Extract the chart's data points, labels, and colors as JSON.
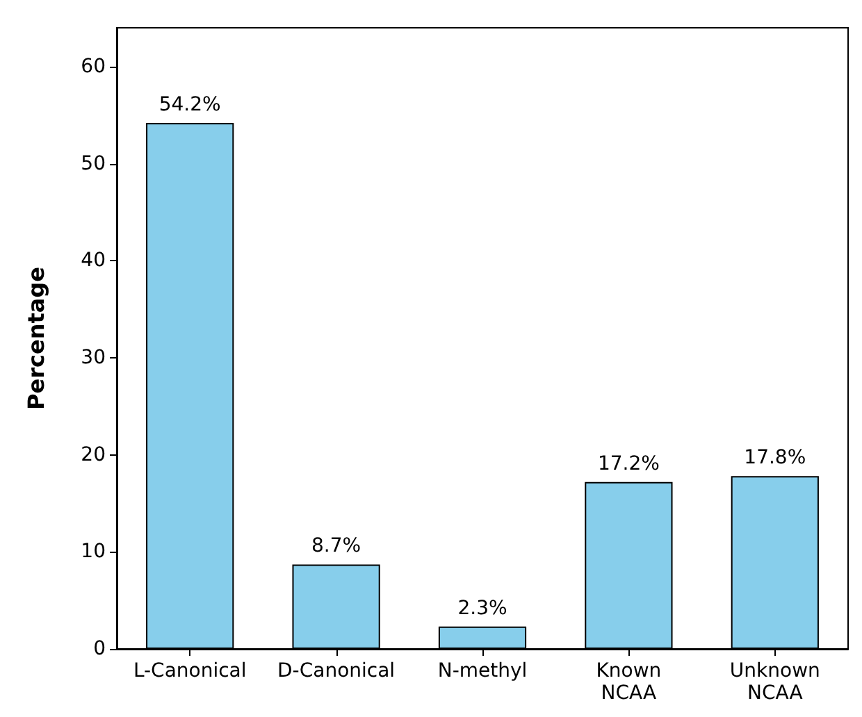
{
  "chart_data": {
    "type": "bar",
    "ylabel": "Percentage",
    "categories": [
      "L-Canonical",
      "D-Canonical",
      "N-methyl",
      "Known\nNCAA",
      "Unknown\nNCAA"
    ],
    "values": [
      54.2,
      8.7,
      2.3,
      17.2,
      17.8
    ],
    "value_labels": [
      "54.2%",
      "8.7%",
      "2.3%",
      "17.2%",
      "17.8%"
    ],
    "color": "#87ceeb",
    "ylim": [
      0,
      64
    ],
    "yticks": [
      0,
      10,
      20,
      30,
      40,
      50,
      60
    ],
    "grid": false
  }
}
